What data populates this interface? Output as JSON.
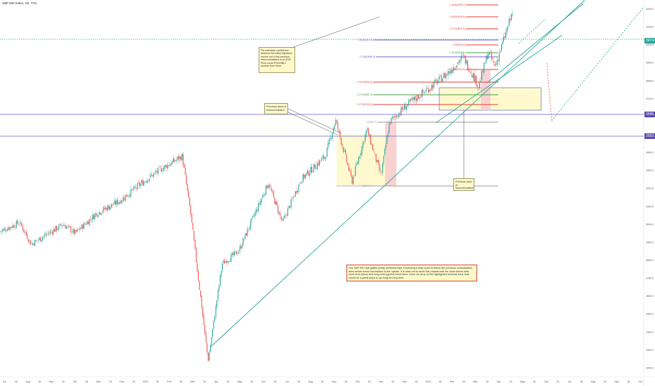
{
  "header": {
    "symbol_title": "S&P 500 Index, 1D, TVC"
  },
  "annotations": {
    "confluence_note": "Fib extension confluence between the initial impulsive moves out of the previous reaccumulations is at 4118. Price could POSSIBLY reverse from there.",
    "prev_area_note_1": "Previous area of reaccumulation",
    "prev_area_note_2": "Previous area of reaccumulation",
    "summary_note": "The S&P 500 has gotten pretty overextended. Expecting a drop soon to below the previous consolidation area before trend resumption to the upside. It is wise not to short this market until we close below both short term (blue) and long term (green) trend lines. Once we drop to the highlighted reversal area, that would be a great place to go long for long term."
  },
  "fib_labels": [
    "1.618(4098.7)",
    "1.618(4036.6)",
    "1.272(3875.1)",
    "1.618(4113.3)",
    "1.0(3926.5)",
    "1.414(4001.1)",
    "0.786(3866.5)",
    "1.618(3963.5)",
    "1.414(3916.3)",
    "1.272(3882.3)",
    "1.272(3795.3)",
    "1(3882.3)",
    "1(3644.4)"
  ],
  "price_tags": {
    "current": "3974.0",
    "blue_level_1": "3696.3",
    "blue_level_2": "3582.4"
  },
  "axis": {
    "x_ticks": [
      "Jul",
      "16",
      "Aug",
      "16",
      "Sep",
      "16",
      "Oct",
      "16",
      "Nov",
      "16",
      "Dec",
      "16",
      "2020",
      "16",
      "Feb",
      "16",
      "Mar",
      "16",
      "Apr",
      "16",
      "May",
      "16",
      "Jun",
      "16",
      "Jul",
      "16",
      "Aug",
      "16",
      "Sep",
      "16",
      "Oct",
      "16",
      "Nov",
      "16",
      "Dec",
      "16",
      "2021",
      "16",
      "Feb",
      "16",
      "Mar",
      "16",
      "Apr",
      "16",
      "May",
      "16",
      "Jun",
      "16",
      "Jul",
      "16",
      "Aug",
      "16",
      "Sep",
      "16",
      "Oct"
    ],
    "y_ticks": [
      "4200.0",
      "4100.0",
      "4000.0",
      "3900.0",
      "3800.0",
      "3700.0",
      "3600.0",
      "3500.0",
      "3400.0",
      "3300.0",
      "3200.0",
      "3100.0",
      "3000.0",
      "2900.0",
      "2800.0",
      "2700.0",
      "2600.0",
      "2500.0",
      "2400.0",
      "2300.0",
      "2200.0"
    ]
  },
  "colors": {
    "up": "#26a69a",
    "down": "#ef5350",
    "fib_red": "#e53935",
    "fib_green": "#43a047",
    "fib_purple": "#7b5cc8",
    "blue_level": "#7e57c2",
    "trend": "#26a69a"
  },
  "chart_data": {
    "type": "candlestick",
    "title": "",
    "xlabel": "",
    "ylabel": "",
    "ylim": [
      2150,
      4250
    ],
    "x_range": [
      "2019-07-01",
      "2021-10-01"
    ],
    "series_close_path": [
      [
        "2019-07-01",
        2960
      ],
      [
        "2019-07-26",
        3010
      ],
      [
        "2019-08-10",
        2890
      ],
      [
        "2019-09-01",
        2950
      ],
      [
        "2019-09-20",
        3000
      ],
      [
        "2019-10-05",
        2950
      ],
      [
        "2019-11-01",
        3060
      ],
      [
        "2019-12-01",
        3130
      ],
      [
        "2020-01-01",
        3240
      ],
      [
        "2020-01-20",
        3300
      ],
      [
        "2020-02-19",
        3380
      ],
      [
        "2020-03-01",
        3050
      ],
      [
        "2020-03-23",
        2240
      ],
      [
        "2020-04-10",
        2780
      ],
      [
        "2020-05-01",
        2850
      ],
      [
        "2020-06-08",
        3230
      ],
      [
        "2020-06-26",
        3010
      ],
      [
        "2020-07-20",
        3250
      ],
      [
        "2020-08-20",
        3380
      ],
      [
        "2020-09-02",
        3580
      ],
      [
        "2020-09-23",
        3240
      ],
      [
        "2020-10-12",
        3530
      ],
      [
        "2020-10-30",
        3270
      ],
      [
        "2020-11-10",
        3570
      ],
      [
        "2020-12-01",
        3660
      ],
      [
        "2020-12-31",
        3760
      ],
      [
        "2021-01-25",
        3850
      ],
      [
        "2021-02-12",
        3935
      ],
      [
        "2021-03-04",
        3770
      ],
      [
        "2021-03-16",
        3960
      ],
      [
        "2021-03-25",
        3880
      ],
      [
        "2021-04-16",
        4180
      ]
    ],
    "fib_levels": [
      {
        "label": "1.618(4098.7)",
        "value": 4255,
        "color": "red"
      },
      {
        "label": "1.618(4036.6)",
        "value": 4236,
        "color": "red"
      },
      {
        "label": "1.272(3875.1)",
        "value": 4214,
        "color": "red"
      },
      {
        "label": "1.618(4113.3)",
        "value": 4192,
        "color": "purple"
      },
      {
        "label": "1.0(3926.5)",
        "value": 4168,
        "color": "red"
      },
      {
        "label": "1.414(4001.1)",
        "value": 4120,
        "color": "green"
      },
      {
        "label": "0.786(3866.5)",
        "value": 4102,
        "color": "purple"
      },
      {
        "label": "1.618(3963.5)",
        "value": 4090,
        "color": "red"
      },
      {
        "label": "1.414(3916.3)",
        "value": 3960,
        "color": "red"
      },
      {
        "label": "1.272(3882.3)",
        "value": 3922,
        "color": "green"
      },
      {
        "label": "1.272(3795.3)",
        "value": 3880,
        "color": "red"
      },
      {
        "label": "1(3882.3)",
        "value": 3700,
        "color": "gray"
      },
      {
        "label": "1(3644.4)",
        "value": 3300,
        "color": "gray"
      }
    ],
    "horizontal_levels": [
      {
        "value": 3974.0,
        "color": "teal",
        "style": "dotted"
      },
      {
        "value": 3696.3,
        "color": "purple",
        "style": "solid"
      },
      {
        "value": 3582.4,
        "color": "purple",
        "style": "solid"
      }
    ]
  }
}
